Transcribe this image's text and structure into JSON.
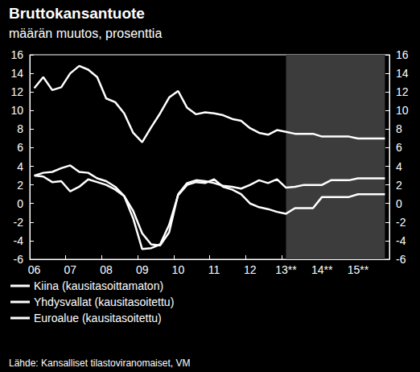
{
  "chart_data": {
    "type": "line",
    "title": "Bruttokansantuote",
    "subtitle": "määrän muutos, prosenttia",
    "source": "Lähde: Kansalliset tilastoviranomaiset, VM",
    "categories": [
      "06",
      null,
      null,
      null,
      "07",
      null,
      null,
      null,
      "08",
      null,
      null,
      null,
      "09",
      null,
      null,
      null,
      "10",
      null,
      null,
      null,
      "11",
      null,
      null,
      null,
      "12",
      null,
      null,
      null,
      "13**",
      null,
      null,
      null,
      "14**",
      null,
      null,
      null,
      "15**",
      null,
      null,
      null
    ],
    "series": [
      {
        "name": "Kiina (kausitasoittamaton)",
        "color": "#ffffff",
        "values": [
          12.4,
          13.6,
          12.2,
          12.5,
          14.0,
          14.8,
          14.4,
          13.6,
          11.3,
          10.9,
          9.7,
          7.6,
          6.6,
          8.2,
          9.7,
          11.4,
          12.1,
          10.3,
          9.6,
          9.8,
          9.7,
          9.5,
          9.1,
          8.9,
          8.1,
          7.6,
          7.4,
          7.9,
          7.7,
          7.5,
          7.5,
          7.5,
          7.2,
          7.2,
          7.2,
          7.2,
          7.0,
          7.0,
          7.0,
          7.0
        ]
      },
      {
        "name": "Yhdysvallat (kausitasoitettu)",
        "color": "#ffffff",
        "values": [
          3.0,
          2.9,
          2.3,
          2.4,
          1.3,
          1.8,
          2.6,
          2.3,
          2.0,
          1.5,
          0.8,
          -0.8,
          -3.2,
          -4.4,
          -4.5,
          -3.1,
          1.0,
          2.2,
          2.5,
          2.4,
          2.2,
          1.9,
          1.8,
          1.6,
          2.0,
          2.5,
          2.2,
          2.6,
          1.7,
          1.8,
          2.0,
          2.0,
          2.0,
          2.5,
          2.5,
          2.5,
          2.7,
          2.7,
          2.7,
          2.7
        ]
      },
      {
        "name": "Euroalue (kausitasoitettu)",
        "color": "#ffffff",
        "values": [
          3.0,
          3.3,
          3.4,
          3.8,
          4.1,
          3.4,
          3.3,
          2.7,
          2.4,
          1.8,
          0.8,
          -1.6,
          -4.9,
          -4.8,
          -4.4,
          -2.3,
          0.9,
          2.0,
          2.3,
          2.2,
          2.6,
          1.8,
          1.5,
          1.0,
          0.0,
          -0.4,
          -0.6,
          -0.9,
          -1.1,
          -0.5,
          -0.5,
          -0.5,
          0.7,
          0.7,
          0.7,
          0.7,
          1.0,
          1.0,
          1.0,
          1.0
        ]
      }
    ],
    "ylim": [
      -6,
      16
    ],
    "yticks": [
      -6,
      -4,
      -2,
      0,
      2,
      4,
      6,
      8,
      10,
      12,
      14,
      16
    ],
    "grid": false,
    "legend": "bottom-left"
  }
}
